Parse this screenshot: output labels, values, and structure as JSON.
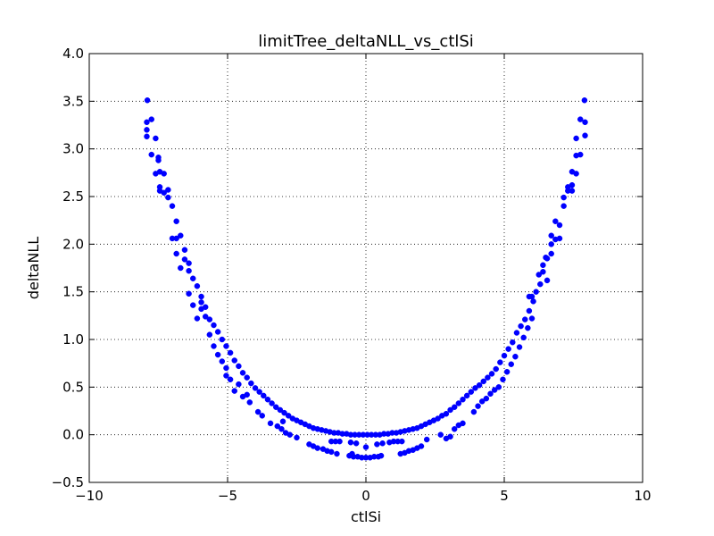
{
  "chart_data": {
    "type": "scatter",
    "title": "limitTree_deltaNLL_vs_ctlSi",
    "xlabel": "ctlSi",
    "ylabel": "deltaNLL",
    "xlim": [
      -10,
      10
    ],
    "ylim": [
      -0.5,
      4.0
    ],
    "grid": true,
    "marker_color": "#0000ff",
    "xticks": [
      -10,
      -5,
      0,
      5,
      10
    ],
    "xtick_labels": [
      "−10",
      "−5",
      "0",
      "5",
      "10"
    ],
    "yticks": [
      -0.5,
      0.0,
      0.5,
      1.0,
      1.5,
      2.0,
      2.5,
      3.0,
      3.5,
      4.0
    ],
    "ytick_labels": [
      "−0.5",
      "0.0",
      "0.5",
      "1.0",
      "1.5",
      "2.0",
      "2.5",
      "3.0",
      "3.5",
      "4.0"
    ],
    "series": [
      {
        "points": [
          [
            -7.9,
            3.51
          ],
          [
            -7.92,
            3.28
          ],
          [
            -7.92,
            3.2
          ],
          [
            -7.92,
            3.13
          ],
          [
            -7.75,
            3.31
          ],
          [
            -7.6,
            3.11
          ],
          [
            -7.75,
            2.94
          ],
          [
            -7.5,
            2.91
          ],
          [
            -7.5,
            2.88
          ],
          [
            -7.6,
            2.74
          ],
          [
            -7.45,
            2.76
          ],
          [
            -7.3,
            2.74
          ],
          [
            -7.45,
            2.6
          ],
          [
            -7.45,
            2.56
          ],
          [
            -7.3,
            2.54
          ],
          [
            -7.15,
            2.57
          ],
          [
            -7.15,
            2.49
          ],
          [
            -7.0,
            2.4
          ],
          [
            -6.85,
            2.24
          ],
          [
            -7.0,
            2.06
          ],
          [
            -6.85,
            2.06
          ],
          [
            -6.7,
            2.09
          ],
          [
            -6.85,
            1.9
          ],
          [
            -6.55,
            1.94
          ],
          [
            -6.55,
            1.84
          ],
          [
            -6.7,
            1.75
          ],
          [
            -6.4,
            1.8
          ],
          [
            -6.4,
            1.72
          ],
          [
            -6.25,
            1.64
          ],
          [
            -6.1,
            1.56
          ],
          [
            -6.4,
            1.48
          ],
          [
            -5.95,
            1.45
          ],
          [
            -6.25,
            1.36
          ],
          [
            -5.95,
            1.39
          ],
          [
            -5.95,
            1.32
          ],
          [
            -5.8,
            1.34
          ],
          [
            -5.8,
            1.24
          ],
          [
            -6.1,
            1.22
          ],
          [
            -5.65,
            1.21
          ],
          [
            -5.5,
            1.15
          ],
          [
            -5.65,
            1.05
          ],
          [
            -5.35,
            1.08
          ],
          [
            -5.2,
            1.0
          ],
          [
            -5.5,
            0.93
          ],
          [
            -5.05,
            0.93
          ],
          [
            -5.35,
            0.84
          ],
          [
            -4.9,
            0.86
          ],
          [
            -5.2,
            0.77
          ],
          [
            -4.75,
            0.78
          ],
          [
            -5.05,
            0.7
          ],
          [
            -4.6,
            0.72
          ],
          [
            -5.05,
            0.62
          ],
          [
            -4.45,
            0.65
          ],
          [
            -4.9,
            0.58
          ],
          [
            -4.3,
            0.6
          ],
          [
            -4.6,
            0.53
          ],
          [
            -4.15,
            0.54
          ],
          [
            -4.75,
            0.46
          ],
          [
            -4.0,
            0.49
          ],
          [
            -4.3,
            0.42
          ],
          [
            -3.85,
            0.45
          ],
          [
            -4.45,
            0.4
          ],
          [
            -3.7,
            0.41
          ],
          [
            -3.55,
            0.37
          ],
          [
            -4.2,
            0.34
          ],
          [
            -3.4,
            0.33
          ],
          [
            -3.25,
            0.29
          ],
          [
            -3.9,
            0.24
          ],
          [
            -3.1,
            0.26
          ],
          [
            -2.95,
            0.23
          ],
          [
            -3.75,
            0.2
          ],
          [
            -2.8,
            0.2
          ],
          [
            -2.65,
            0.17
          ],
          [
            -3.45,
            0.12
          ],
          [
            -3.0,
            0.14
          ],
          [
            -2.5,
            0.15
          ],
          [
            -2.35,
            0.13
          ],
          [
            -3.2,
            0.09
          ],
          [
            -2.2,
            0.11
          ],
          [
            -2.05,
            0.09
          ],
          [
            -3.05,
            0.06
          ],
          [
            -1.9,
            0.07
          ],
          [
            -1.75,
            0.06
          ],
          [
            -2.9,
            0.02
          ],
          [
            -1.6,
            0.05
          ],
          [
            -1.45,
            0.04
          ],
          [
            -2.75,
            0.0
          ],
          [
            -1.3,
            0.03
          ],
          [
            -1.15,
            0.02
          ],
          [
            -2.5,
            -0.03
          ],
          [
            -1.0,
            0.02
          ],
          [
            -0.85,
            0.01
          ],
          [
            -2.05,
            -0.1
          ],
          [
            -0.7,
            0.01
          ],
          [
            -0.55,
            0.0
          ],
          [
            -1.9,
            -0.12
          ],
          [
            -0.4,
            0.0
          ],
          [
            -1.75,
            -0.14
          ],
          [
            -0.25,
            0.0
          ],
          [
            -1.55,
            -0.15
          ],
          [
            -0.1,
            0.0
          ],
          [
            -1.4,
            -0.17
          ],
          [
            0.05,
            0.0
          ],
          [
            -1.25,
            -0.18
          ],
          [
            0.2,
            0.0
          ],
          [
            -1.05,
            -0.2
          ],
          [
            -1.25,
            -0.07
          ],
          [
            -1.1,
            -0.07
          ],
          [
            -0.95,
            -0.07
          ],
          [
            -0.55,
            -0.08
          ],
          [
            -0.35,
            -0.09
          ],
          [
            -0.5,
            -0.2
          ],
          [
            0.0,
            -0.13
          ],
          [
            -0.6,
            -0.22
          ],
          [
            -0.45,
            -0.23
          ],
          [
            -0.3,
            -0.23
          ],
          [
            -0.15,
            -0.24
          ],
          [
            0.0,
            -0.24
          ],
          [
            0.15,
            -0.24
          ],
          [
            0.3,
            -0.23
          ],
          [
            0.45,
            -0.23
          ],
          [
            0.55,
            -0.22
          ],
          [
            0.35,
            0.0
          ],
          [
            0.5,
            0.0
          ],
          [
            0.65,
            0.01
          ],
          [
            0.8,
            0.01
          ],
          [
            0.95,
            0.02
          ],
          [
            0.4,
            -0.1
          ],
          [
            0.6,
            -0.09
          ],
          [
            0.85,
            -0.08
          ],
          [
            1.0,
            -0.07
          ],
          [
            1.15,
            -0.07
          ],
          [
            1.3,
            -0.07
          ],
          [
            1.1,
            0.02
          ],
          [
            1.25,
            0.03
          ],
          [
            1.4,
            0.04
          ],
          [
            1.55,
            0.05
          ],
          [
            1.7,
            0.06
          ],
          [
            1.85,
            0.07
          ],
          [
            1.25,
            -0.2
          ],
          [
            1.4,
            -0.19
          ],
          [
            1.55,
            -0.17
          ],
          [
            1.7,
            -0.16
          ],
          [
            1.85,
            -0.14
          ],
          [
            2.0,
            -0.12
          ],
          [
            2.0,
            0.09
          ],
          [
            2.15,
            0.11
          ],
          [
            2.3,
            0.13
          ],
          [
            2.45,
            0.15
          ],
          [
            2.6,
            0.17
          ],
          [
            2.75,
            0.2
          ],
          [
            2.9,
            0.22
          ],
          [
            3.05,
            0.26
          ],
          [
            2.2,
            -0.05
          ],
          [
            2.7,
            0.0
          ],
          [
            2.9,
            -0.04
          ],
          [
            3.05,
            -0.02
          ],
          [
            3.2,
            0.06
          ],
          [
            3.35,
            0.1
          ],
          [
            3.5,
            0.12
          ],
          [
            3.2,
            0.29
          ],
          [
            3.35,
            0.33
          ],
          [
            3.5,
            0.37
          ],
          [
            3.65,
            0.41
          ],
          [
            3.8,
            0.45
          ],
          [
            3.95,
            0.49
          ],
          [
            4.1,
            0.52
          ],
          [
            4.25,
            0.56
          ],
          [
            4.4,
            0.6
          ],
          [
            4.55,
            0.64
          ],
          [
            4.7,
            0.69
          ],
          [
            4.85,
            0.76
          ],
          [
            5.0,
            0.83
          ],
          [
            5.15,
            0.9
          ],
          [
            5.3,
            0.97
          ],
          [
            5.45,
            1.07
          ],
          [
            5.6,
            1.14
          ],
          [
            5.75,
            1.21
          ],
          [
            5.9,
            1.3
          ],
          [
            6.05,
            1.4
          ],
          [
            3.9,
            0.24
          ],
          [
            4.05,
            0.3
          ],
          [
            4.2,
            0.35
          ],
          [
            4.35,
            0.38
          ],
          [
            4.5,
            0.43
          ],
          [
            4.65,
            0.47
          ],
          [
            4.8,
            0.5
          ],
          [
            4.95,
            0.58
          ],
          [
            5.1,
            0.66
          ],
          [
            5.25,
            0.74
          ],
          [
            5.4,
            0.82
          ],
          [
            5.55,
            0.92
          ],
          [
            5.7,
            1.02
          ],
          [
            5.85,
            1.12
          ],
          [
            6.0,
            1.22
          ],
          [
            5.9,
            1.45
          ],
          [
            6.0,
            1.45
          ],
          [
            6.15,
            1.5
          ],
          [
            6.3,
            1.58
          ],
          [
            6.25,
            1.68
          ],
          [
            6.4,
            1.71
          ],
          [
            6.4,
            1.78
          ],
          [
            6.55,
            1.62
          ],
          [
            6.55,
            1.85
          ],
          [
            6.7,
            1.9
          ],
          [
            6.7,
            2.0
          ],
          [
            6.5,
            1.86
          ],
          [
            6.85,
            2.05
          ],
          [
            7.0,
            2.06
          ],
          [
            6.85,
            2.24
          ],
          [
            7.0,
            2.2
          ],
          [
            6.7,
            2.09
          ],
          [
            7.15,
            2.4
          ],
          [
            7.15,
            2.49
          ],
          [
            7.3,
            2.56
          ],
          [
            7.45,
            2.56
          ],
          [
            7.3,
            2.6
          ],
          [
            7.45,
            2.62
          ],
          [
            7.6,
            2.74
          ],
          [
            7.45,
            2.76
          ],
          [
            7.75,
            2.94
          ],
          [
            7.6,
            2.93
          ],
          [
            7.6,
            3.11
          ],
          [
            7.75,
            3.31
          ],
          [
            7.92,
            3.14
          ],
          [
            7.92,
            3.28
          ],
          [
            7.9,
            3.51
          ]
        ]
      }
    ]
  }
}
